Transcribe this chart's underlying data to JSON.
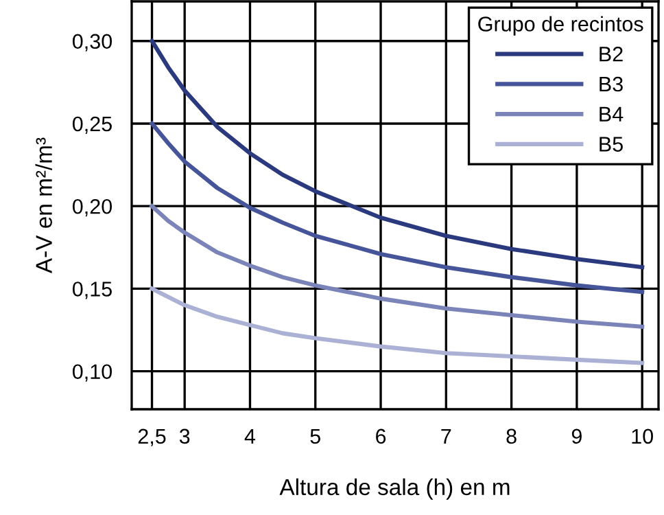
{
  "chart_data": {
    "type": "line",
    "xlabel": "Altura de sala (h) en m",
    "ylabel": "A-V en m²/m³",
    "legend_title": "Grupo de recintos",
    "legend": "top right",
    "grid": true,
    "marker": "none",
    "line_style": "solid",
    "x": [
      2.5,
      2.75,
      3,
      3.5,
      4,
      4.5,
      5,
      6,
      7,
      8,
      9,
      10
    ],
    "xlim": [
      2.19,
      10.25
    ],
    "ylim": [
      0.077,
      0.324
    ],
    "xticks": [
      {
        "value": 2.5,
        "label": "2,5"
      },
      3,
      4,
      5,
      6,
      7,
      8,
      9,
      10
    ],
    "yticks": [
      {
        "value": 0.1,
        "label": "0,10"
      },
      {
        "value": 0.15,
        "label": "0,15"
      },
      {
        "value": 0.2,
        "label": "0,20"
      },
      {
        "value": 0.25,
        "label": "0,25"
      },
      {
        "value": 0.3,
        "label": "0,30"
      }
    ],
    "series": [
      {
        "name": "B2",
        "color": "#2b3a7e",
        "values": [
          0.3,
          0.284,
          0.27,
          0.248,
          0.232,
          0.219,
          0.209,
          0.193,
          0.182,
          0.174,
          0.168,
          0.163
        ]
      },
      {
        "name": "B3",
        "color": "#46549a",
        "values": [
          0.25,
          0.238,
          0.227,
          0.211,
          0.199,
          0.19,
          0.182,
          0.171,
          0.163,
          0.157,
          0.152,
          0.148
        ]
      },
      {
        "name": "B4",
        "color": "#7a84b8",
        "values": [
          0.2,
          0.191,
          0.184,
          0.172,
          0.164,
          0.157,
          0.152,
          0.144,
          0.138,
          0.134,
          0.13,
          0.127
        ]
      },
      {
        "name": "B5",
        "color": "#aab1d4",
        "values": [
          0.15,
          0.145,
          0.14,
          0.133,
          0.128,
          0.123,
          0.12,
          0.115,
          0.111,
          0.109,
          0.107,
          0.105
        ]
      }
    ]
  }
}
